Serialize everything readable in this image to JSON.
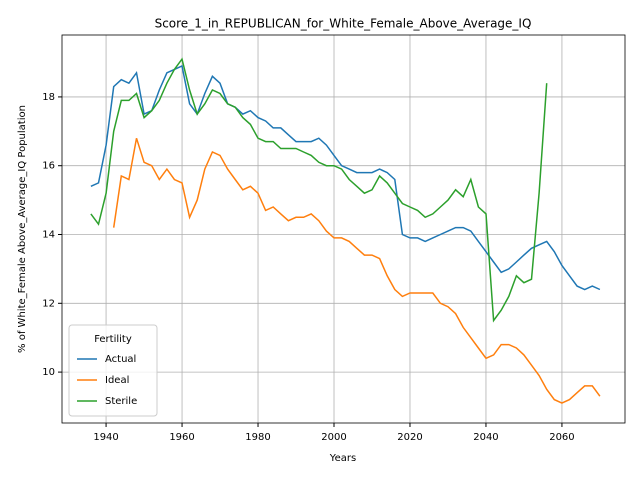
{
  "chart_data": {
    "type": "line",
    "title": "Score_1_in_REPUBLICAN_for_White_Female_Above_Average_IQ",
    "xlabel": "Years",
    "ylabel": "% of White_Female Above_Average_IQ Population",
    "legend_title": "Fertility",
    "legend": "lower left",
    "grid": true,
    "xlim": [
      1928.4,
      2076.6
    ],
    "ylim": [
      8.52,
      19.8
    ],
    "xticks": [
      1940,
      1960,
      1980,
      2000,
      2020,
      2040,
      2060
    ],
    "yticks": [
      10,
      12,
      14,
      16,
      18
    ],
    "x": [
      1936,
      1938,
      1940,
      1942,
      1944,
      1946,
      1948,
      1950,
      1952,
      1954,
      1956,
      1958,
      1960,
      1962,
      1964,
      1966,
      1968,
      1970,
      1972,
      1974,
      1976,
      1978,
      1980,
      1982,
      1984,
      1986,
      1988,
      1990,
      1992,
      1994,
      1996,
      1998,
      2000,
      2002,
      2004,
      2006,
      2008,
      2010,
      2012,
      2014,
      2016,
      2018,
      2020,
      2022,
      2024,
      2026,
      2028,
      2030,
      2032,
      2034,
      2036,
      2038,
      2040,
      2042,
      2044,
      2046,
      2048,
      2050,
      2052,
      2054,
      2056,
      2058,
      2060,
      2062,
      2064,
      2066,
      2068,
      2070
    ],
    "series": [
      {
        "name": "Actual",
        "color": "#1f77b4",
        "values": [
          15.4,
          15.5,
          16.6,
          18.3,
          18.5,
          18.4,
          18.7,
          17.5,
          17.6,
          18.2,
          18.7,
          18.8,
          18.9,
          17.8,
          17.5,
          18.1,
          18.6,
          18.4,
          17.8,
          17.7,
          17.5,
          17.6,
          17.4,
          17.3,
          17.1,
          17.1,
          16.9,
          16.7,
          16.7,
          16.7,
          16.8,
          16.6,
          16.3,
          16.0,
          15.9,
          15.8,
          15.8,
          15.8,
          15.9,
          15.8,
          15.6,
          14.0,
          13.9,
          13.9,
          13.8,
          13.9,
          14.0,
          14.1,
          14.2,
          14.2,
          14.1,
          13.8,
          13.5,
          13.2,
          12.9,
          13.0,
          13.2,
          13.4,
          13.6,
          13.7,
          13.8,
          13.5,
          13.1,
          12.8,
          12.5,
          12.4,
          12.5,
          12.4
        ]
      },
      {
        "name": "Ideal",
        "color": "#ff7f0e",
        "values": [
          null,
          null,
          null,
          14.2,
          15.7,
          15.6,
          16.8,
          16.1,
          16.0,
          15.6,
          15.9,
          15.6,
          15.5,
          14.5,
          15.0,
          15.9,
          16.4,
          16.3,
          15.9,
          15.6,
          15.3,
          15.4,
          15.2,
          14.7,
          14.8,
          14.6,
          14.4,
          14.5,
          14.5,
          14.6,
          14.4,
          14.1,
          13.9,
          13.9,
          13.8,
          13.6,
          13.4,
          13.4,
          13.3,
          12.8,
          12.4,
          12.2,
          12.3,
          12.3,
          12.3,
          12.3,
          12.0,
          11.9,
          11.7,
          11.3,
          11.0,
          10.7,
          10.4,
          10.5,
          10.8,
          10.8,
          10.7,
          10.5,
          10.2,
          9.9,
          9.5,
          9.2,
          9.1,
          9.2,
          9.4,
          9.6,
          9.6,
          9.3
        ]
      },
      {
        "name": "Sterile",
        "color": "#2ca02c",
        "values": [
          14.6,
          14.3,
          15.2,
          17.0,
          17.9,
          17.9,
          18.1,
          17.4,
          17.6,
          17.9,
          18.4,
          18.8,
          19.1,
          18.2,
          17.5,
          17.8,
          18.2,
          18.1,
          17.8,
          17.7,
          17.4,
          17.2,
          16.8,
          16.7,
          16.7,
          16.5,
          16.5,
          16.5,
          16.4,
          16.3,
          16.1,
          16.0,
          16.0,
          15.9,
          15.6,
          15.4,
          15.2,
          15.3,
          15.7,
          15.5,
          15.2,
          14.9,
          14.8,
          14.7,
          14.5,
          14.6,
          14.8,
          15.0,
          15.3,
          15.1,
          15.6,
          14.8,
          14.6,
          11.5,
          11.8,
          12.2,
          12.8,
          12.6,
          12.7,
          15.2,
          18.4,
          null,
          null,
          null,
          null,
          null,
          null,
          null
        ]
      }
    ]
  }
}
